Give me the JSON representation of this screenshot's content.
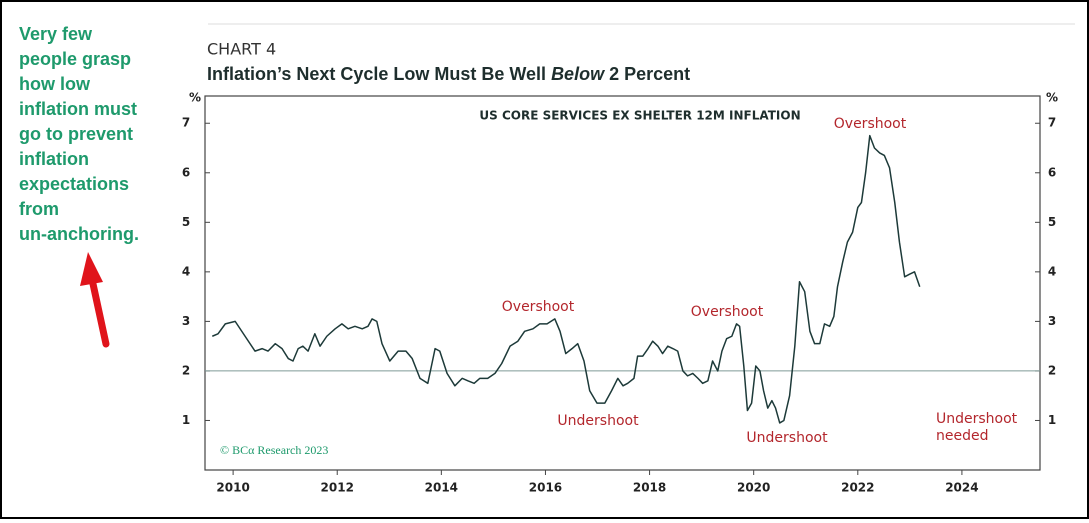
{
  "sidebar": {
    "lines": [
      "Very few",
      "people grasp",
      "how low",
      "inflation must",
      "go to prevent",
      "inflation",
      "expectations",
      "from",
      "un-anchoring."
    ]
  },
  "chart_data": {
    "type": "line",
    "chart_label": "CHART 4",
    "title_parts": [
      "Inflation’s Next Cycle Low Must Be Well ",
      "Below",
      " 2 Percent"
    ],
    "ylabel": "%",
    "y2label": "%",
    "source": "© BCα Research 2023",
    "x": [
      2009.6,
      2009.71,
      2009.85,
      2010.04,
      2010.23,
      2010.42,
      2010.56,
      2010.67,
      2010.81,
      2010.94,
      2011.06,
      2011.15,
      2011.25,
      2011.34,
      2011.44,
      2011.57,
      2011.67,
      2011.8,
      2011.96,
      2012.09,
      2012.21,
      2012.34,
      2012.48,
      2012.59,
      2012.67,
      2012.76,
      2012.86,
      2013.01,
      2013.17,
      2013.32,
      2013.44,
      2013.59,
      2013.74,
      2013.88,
      2013.97,
      2014.11,
      2014.26,
      2014.4,
      2014.51,
      2014.63,
      2014.74,
      2014.89,
      2015.03,
      2015.16,
      2015.32,
      2015.47,
      2015.6,
      2015.76,
      2015.89,
      2016.03,
      2016.18,
      2016.28,
      2016.39,
      2016.51,
      2016.62,
      2016.74,
      2016.85,
      2016.99,
      2017.14,
      2017.27,
      2017.39,
      2017.49,
      2017.58,
      2017.7,
      2017.77,
      2017.87,
      2017.97,
      2018.06,
      2018.16,
      2018.25,
      2018.35,
      2018.45,
      2018.54,
      2018.64,
      2018.73,
      2018.83,
      2018.93,
      2019.02,
      2019.12,
      2019.21,
      2019.31,
      2019.39,
      2019.48,
      2019.58,
      2019.67,
      2019.73,
      2019.81,
      2019.88,
      2019.96,
      2020.04,
      2020.12,
      2020.19,
      2020.27,
      2020.35,
      2020.42,
      2020.5,
      2020.58,
      2020.69,
      2020.79,
      2020.88,
      2020.98,
      2021.08,
      2021.17,
      2021.27,
      2021.36,
      2021.46,
      2021.54,
      2021.61,
      2021.71,
      2021.8,
      2021.9,
      2022.0,
      2022.07,
      2022.15,
      2022.23,
      2022.32,
      2022.42,
      2022.51,
      2022.61,
      2022.71,
      2022.8,
      2022.9,
      2022.99,
      2023.09,
      2023.19
    ],
    "series": [
      {
        "name": "US CORE SERVICES EX SHELTER 12M INFLATION",
        "color": "#1d3a39",
        "values": [
          2.7,
          2.75,
          2.95,
          3.0,
          2.7,
          2.4,
          2.45,
          2.4,
          2.55,
          2.45,
          2.25,
          2.2,
          2.45,
          2.5,
          2.4,
          2.75,
          2.5,
          2.7,
          2.85,
          2.95,
          2.85,
          2.9,
          2.85,
          2.9,
          3.05,
          3.0,
          2.55,
          2.2,
          2.4,
          2.4,
          2.25,
          1.85,
          1.75,
          2.45,
          2.4,
          1.95,
          1.7,
          1.85,
          1.8,
          1.75,
          1.85,
          1.85,
          1.95,
          2.15,
          2.5,
          2.6,
          2.8,
          2.85,
          2.95,
          2.95,
          3.05,
          2.8,
          2.35,
          2.45,
          2.55,
          2.2,
          1.6,
          1.35,
          1.35,
          1.6,
          1.85,
          1.7,
          1.75,
          1.85,
          2.3,
          2.3,
          2.45,
          2.6,
          2.5,
          2.35,
          2.5,
          2.45,
          2.4,
          2.0,
          1.9,
          1.95,
          1.85,
          1.75,
          1.8,
          2.2,
          2.0,
          2.4,
          2.65,
          2.7,
          2.95,
          2.9,
          2.1,
          1.2,
          1.35,
          2.1,
          2.0,
          1.6,
          1.25,
          1.4,
          1.25,
          0.95,
          1.0,
          1.5,
          2.5,
          3.8,
          3.6,
          2.8,
          2.55,
          2.55,
          2.95,
          2.9,
          3.1,
          3.7,
          4.2,
          4.6,
          4.8,
          5.3,
          5.4,
          6.0,
          6.75,
          6.5,
          6.4,
          6.35,
          6.1,
          5.4,
          4.6,
          3.9,
          3.95,
          4.0,
          3.7
        ]
      }
    ],
    "reference_line": 2,
    "reference_color": "#7f9a98",
    "annotations": [
      {
        "lines": [
          "Overshoot"
        ]
      },
      {
        "lines": [
          "Undershoot"
        ]
      },
      {
        "lines": [
          "Overshoot"
        ]
      },
      {
        "lines": [
          "Undershoot"
        ]
      },
      {
        "lines": [
          "Overshoot"
        ]
      },
      {
        "lines": [
          "Undershoot",
          "needed"
        ]
      }
    ],
    "xlim": [
      2009.46,
      2025.5
    ],
    "xticks": [
      2010,
      2012,
      2014,
      2016,
      2018,
      2020,
      2022,
      2024
    ],
    "ylim": [
      0,
      7.55
    ],
    "yticks": [
      1,
      2,
      3,
      4,
      5,
      6,
      7
    ],
    "y2lim": [
      0,
      7.55
    ],
    "y2ticks": [
      1,
      2,
      3,
      4,
      5,
      6,
      7
    ]
  }
}
